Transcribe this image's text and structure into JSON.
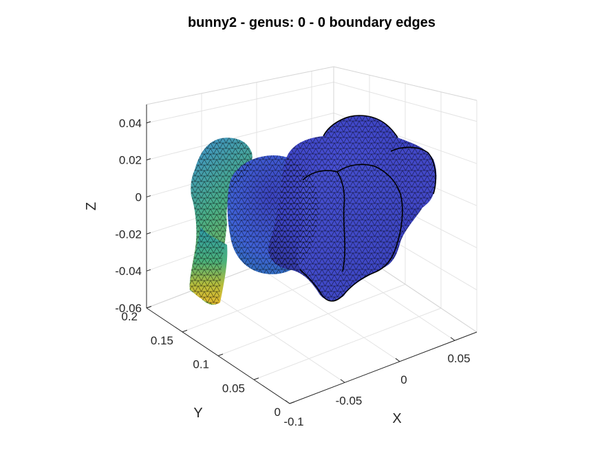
{
  "chart_data": {
    "type": "surface3d",
    "title": "bunny2 - genus: 0 - 0 boundary edges",
    "xlabel": "X",
    "ylabel": "Y",
    "zlabel": "Z",
    "xlim": [
      -0.1,
      0.07
    ],
    "ylim": [
      0,
      0.2
    ],
    "zlim": [
      -0.06,
      0.05
    ],
    "xticks": [
      -0.1,
      -0.05,
      0,
      0.05
    ],
    "yticks": [
      0,
      0.05,
      0.1,
      0.15,
      0.2
    ],
    "zticks": [
      -0.06,
      -0.04,
      -0.02,
      0,
      0.02,
      0.04
    ],
    "xtick_labels": [
      "-0.1",
      "-0.05",
      "0",
      "0.05"
    ],
    "ytick_labels": [
      "0",
      "0.05",
      "0.1",
      "0.15",
      "0.2"
    ],
    "ztick_labels": [
      "-0.06",
      "-0.04",
      "-0.02",
      "0",
      "0.02",
      "0.04"
    ],
    "grid": true,
    "colormap": "parula",
    "colors": {
      "low": "#352a87",
      "mid": "#2fa6c0",
      "high": "#f9c932",
      "edge": "#000000",
      "grid": "#e3e3e3"
    }
  }
}
